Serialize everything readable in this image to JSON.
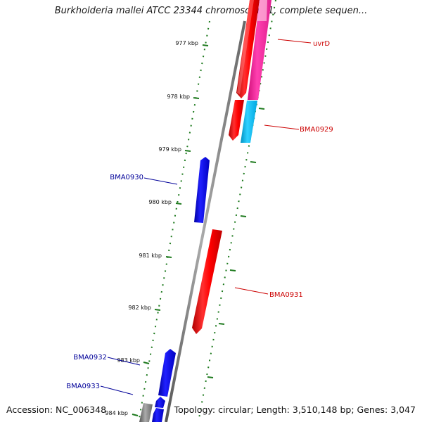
{
  "title": "Burkholderia mallei ATCC 23344 chromosome 1, complete sequen...",
  "footer": {
    "accession": "Accession: NC_006348",
    "stats": "Topology: circular; Length: 3,510,148 bp; Genes: 3,047"
  },
  "colors": {
    "forward_gene": "#ff0000",
    "reverse_gene": "#0000ff",
    "highlight_gene": "#ff2aa8",
    "cyan_gene": "#00c0f0",
    "backbone": "#888888",
    "tick": "#1e7a1e",
    "forward_label": "#cc0000",
    "reverse_label": "#000099"
  },
  "ticks": [
    "977 kbp",
    "978 kbp",
    "979 kbp",
    "980 kbp",
    "981 kbp",
    "982 kbp",
    "983 kbp",
    "984 kbp"
  ],
  "genes": [
    {
      "name": "uvrD",
      "color": "#ff2aa8",
      "label_color": "#cc0000"
    },
    {
      "name": "BMA0929",
      "color": "#00c0f0",
      "label_color": "#cc0000"
    },
    {
      "name": "BMA0930",
      "color": "#0000ff",
      "label_color": "#000099"
    },
    {
      "name": "BMA0931",
      "color": "#ff0000",
      "label_color": "#cc0000"
    },
    {
      "name": "BMA0932",
      "color": "#0000ff",
      "label_color": "#000099"
    },
    {
      "name": "BMA0933",
      "color": "#0000ff",
      "label_color": "#000099"
    }
  ]
}
